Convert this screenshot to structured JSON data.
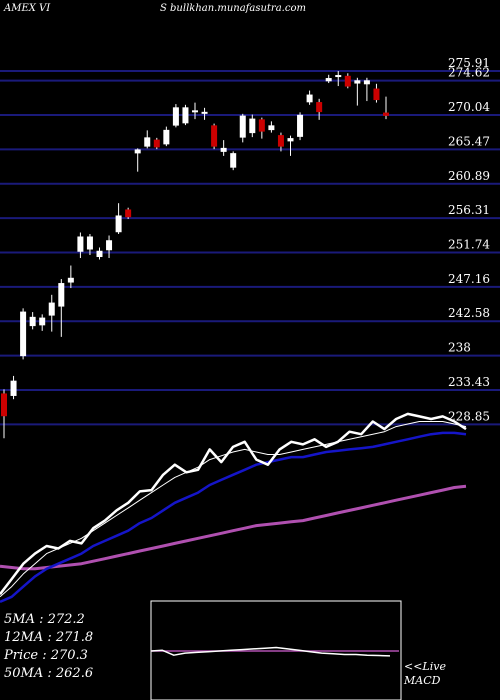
{
  "header": {
    "ticker": "AMEX  VI",
    "site": "S bullkhan.munafasutra.com"
  },
  "colors": {
    "background": "#000000",
    "grid": "#1a1a7a",
    "up_candle": "#ffffff",
    "down_candle": "#cc0000",
    "price_line": "#ffffff",
    "ma_short": "#ffffff",
    "ma_mid": "#1515c8",
    "ma_long": "#b050b0",
    "macd_box": "#ffffff",
    "macd_signal": "#b050b0"
  },
  "indicators": {
    "ma5": "5MA : 272.2",
    "ma12": "12MA : 271.8",
    "price": "Price   : 270.3",
    "ma50": "50MA : 262.6"
  },
  "macd": {
    "line1": "<<Live",
    "line2": "MACD"
  },
  "chart_data": {
    "type": "candlestick",
    "price_axis_ticks": [
      "275.91",
      "274.62",
      "270.04",
      "265.47",
      "260.89",
      "256.31",
      "251.74",
      "247.16",
      "242.58",
      "238",
      "233.43",
      "228.85"
    ],
    "price_axis_values": [
      275.91,
      274.62,
      270.04,
      265.47,
      260.89,
      256.31,
      251.74,
      247.16,
      242.58,
      238,
      233.43,
      228.85
    ],
    "ylim": [
      226.5,
      279.5
    ],
    "candles": [
      {
        "o": 230.0,
        "c": 232.9,
        "h": 233.5,
        "l": 227.0,
        "up": false
      },
      {
        "o": 232.7,
        "c": 234.6,
        "h": 235.3,
        "l": 232.2,
        "up": true
      },
      {
        "o": 238.0,
        "c": 243.8,
        "h": 244.3,
        "l": 237.5,
        "up": true
      },
      {
        "o": 242.0,
        "c": 243.1,
        "h": 243.8,
        "l": 241.5,
        "up": true
      },
      {
        "o": 242.1,
        "c": 243.0,
        "h": 243.5,
        "l": 241.3,
        "up": true
      },
      {
        "o": 243.4,
        "c": 245.0,
        "h": 246.1,
        "l": 241.2,
        "up": true
      },
      {
        "o": 244.6,
        "c": 247.6,
        "h": 248.2,
        "l": 240.5,
        "up": true
      },
      {
        "o": 247.8,
        "c": 248.3,
        "h": 250.0,
        "l": 247.0,
        "up": true
      },
      {
        "o": 251.9,
        "c": 253.8,
        "h": 254.4,
        "l": 251.0,
        "up": true
      },
      {
        "o": 252.2,
        "c": 253.8,
        "h": 254.2,
        "l": 251.4,
        "up": true
      },
      {
        "o": 251.2,
        "c": 251.9,
        "h": 252.4,
        "l": 250.8,
        "up": true
      },
      {
        "o": 252.1,
        "c": 253.3,
        "h": 254.0,
        "l": 251.0,
        "up": true
      },
      {
        "o": 254.5,
        "c": 256.6,
        "h": 258.3,
        "l": 254.2,
        "up": true
      },
      {
        "o": 257.4,
        "c": 256.5,
        "h": 257.7,
        "l": 256.2,
        "up": false
      },
      {
        "o": 265.0,
        "c": 265.4,
        "h": 265.6,
        "l": 262.5,
        "up": true
      },
      {
        "o": 265.9,
        "c": 267.0,
        "h": 268.0,
        "l": 265.6,
        "up": true
      },
      {
        "o": 266.7,
        "c": 265.8,
        "h": 267.0,
        "l": 265.5,
        "up": false
      },
      {
        "o": 266.2,
        "c": 268.0,
        "h": 268.5,
        "l": 265.9,
        "up": true
      },
      {
        "o": 268.7,
        "c": 271.0,
        "h": 271.5,
        "l": 268.4,
        "up": true
      },
      {
        "o": 269.0,
        "c": 271.0,
        "h": 271.4,
        "l": 268.7,
        "up": true
      },
      {
        "o": 270.6,
        "c": 270.5,
        "h": 271.7,
        "l": 269.5,
        "up": true
      },
      {
        "o": 270.4,
        "c": 270.3,
        "h": 271.0,
        "l": 269.4,
        "up": true
      },
      {
        "o": 268.6,
        "c": 265.9,
        "h": 268.9,
        "l": 265.5,
        "up": false
      },
      {
        "o": 265.2,
        "c": 265.6,
        "h": 266.7,
        "l": 264.6,
        "up": true
      },
      {
        "o": 264.9,
        "c": 263.1,
        "h": 265.2,
        "l": 262.7,
        "up": true
      },
      {
        "o": 267.1,
        "c": 269.9,
        "h": 270.2,
        "l": 266.4,
        "up": true
      },
      {
        "o": 267.7,
        "c": 269.5,
        "h": 270.1,
        "l": 267.1,
        "up": true
      },
      {
        "o": 269.4,
        "c": 267.9,
        "h": 269.7,
        "l": 266.9,
        "up": false
      },
      {
        "o": 268.1,
        "c": 268.6,
        "h": 269.2,
        "l": 267.7,
        "up": true
      },
      {
        "o": 267.3,
        "c": 265.9,
        "h": 267.7,
        "l": 265.2,
        "up": false
      },
      {
        "o": 266.6,
        "c": 266.9,
        "h": 267.3,
        "l": 264.6,
        "up": true
      },
      {
        "o": 267.2,
        "c": 270.0,
        "h": 270.4,
        "l": 266.7,
        "up": true
      },
      {
        "o": 271.8,
        "c": 272.7,
        "h": 273.3,
        "l": 271.4,
        "up": true
      },
      {
        "o": 271.7,
        "c": 270.5,
        "h": 272.2,
        "l": 269.4,
        "up": false
      },
      {
        "o": 274.6,
        "c": 274.9,
        "h": 275.4,
        "l": 274.3,
        "up": true
      },
      {
        "o": 275.2,
        "c": 275.3,
        "h": 275.9,
        "l": 273.9,
        "up": true
      },
      {
        "o": 275.2,
        "c": 273.9,
        "h": 275.6,
        "l": 273.6,
        "up": false
      },
      {
        "o": 274.3,
        "c": 274.6,
        "h": 275.0,
        "l": 271.3,
        "up": true
      },
      {
        "o": 274.2,
        "c": 274.6,
        "h": 275.0,
        "l": 271.9,
        "up": true
      },
      {
        "o": 273.5,
        "c": 272.1,
        "h": 274.2,
        "l": 271.7,
        "up": false
      },
      {
        "o": 270.0,
        "c": 270.3,
        "h": 272.5,
        "l": 269.5,
        "up": false
      }
    ],
    "indicator_scale": [
      0,
      100
    ],
    "price_line": [
      14,
      26,
      38,
      46,
      52,
      50,
      56,
      54,
      66,
      72,
      80,
      86,
      95,
      96,
      108,
      116,
      110,
      112,
      128,
      118,
      130,
      134,
      120,
      116,
      128,
      134,
      132,
      136,
      130,
      134,
      142,
      140,
      150,
      144,
      152,
      156,
      154,
      152,
      154,
      150,
      144
    ],
    "ma5_line": [
      12,
      20,
      30,
      38,
      46,
      50,
      54,
      58,
      64,
      70,
      76,
      82,
      88,
      94,
      100,
      106,
      110,
      114,
      120,
      123,
      126,
      128,
      126,
      124,
      124,
      126,
      128,
      130,
      132,
      134,
      136,
      138,
      140,
      142,
      146,
      148,
      150,
      150,
      150,
      148,
      146
    ],
    "ma12_line": [
      8,
      12,
      20,
      28,
      34,
      38,
      42,
      46,
      52,
      56,
      60,
      64,
      70,
      74,
      80,
      86,
      90,
      94,
      100,
      104,
      108,
      112,
      116,
      118,
      120,
      122,
      122,
      124,
      126,
      127,
      128,
      129,
      130,
      132,
      134,
      136,
      138,
      140,
      141,
      141,
      140
    ],
    "ma50_line": [
      36,
      35,
      34,
      34,
      35,
      36,
      37,
      38,
      40,
      42,
      44,
      46,
      48,
      50,
      52,
      54,
      56,
      58,
      60,
      62,
      64,
      66,
      68,
      69,
      70,
      71,
      72,
      74,
      76,
      78,
      80,
      82,
      84,
      86,
      88,
      90,
      92,
      94,
      96,
      98,
      99
    ],
    "macd_line": [
      50,
      52,
      38,
      44,
      46,
      48,
      50,
      52,
      54,
      56,
      58,
      60,
      56,
      52,
      48,
      44,
      42,
      40,
      40,
      38,
      37,
      36
    ],
    "macd_signal": [
      50,
      50,
      50,
      50,
      50,
      50,
      50,
      50,
      50,
      50,
      50,
      50,
      50,
      50,
      50,
      50,
      50,
      50,
      50,
      50,
      50,
      50
    ]
  }
}
